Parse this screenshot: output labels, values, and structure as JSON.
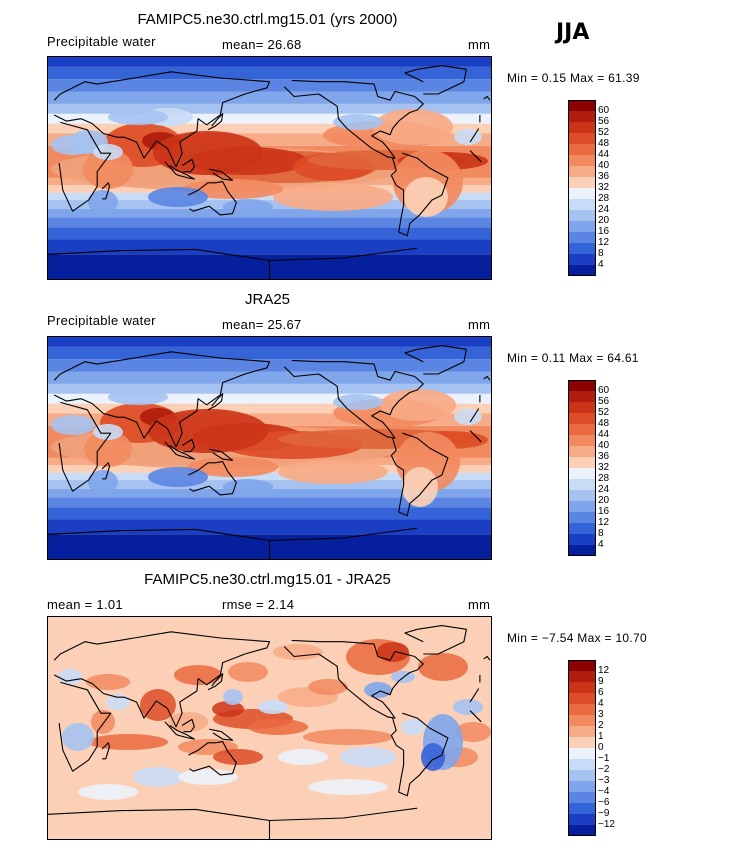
{
  "season_label": "JJA",
  "panels": [
    {
      "id": "model",
      "title": "FAMIPC5.ne30.ctrl.mg15.01 (yrs 2000)",
      "left_label": "Precipitable water",
      "center_label": "mean=  26.68",
      "units": "mm",
      "stats": "Min =   0.15 Max =  61.39",
      "colorbar": {
        "labels": [
          "60",
          "56",
          "52",
          "48",
          "44",
          "40",
          "36",
          "32",
          "28",
          "24",
          "20",
          "16",
          "12",
          "8",
          "4"
        ],
        "colors": [
          "#8b0000",
          "#b01c0e",
          "#cc3418",
          "#dd4d27",
          "#ea6a3f",
          "#f28a60",
          "#f7aa86",
          "#fbd0b6",
          "#ecf2fb",
          "#c9dcf6",
          "#a5c2f0",
          "#7fa5ea",
          "#5b85e2",
          "#3563d8",
          "#1a3fc4",
          "#061f9c"
        ],
        "pattern": "model"
      }
    },
    {
      "id": "obs",
      "title": "JRA25",
      "left_label": "Precipitable water",
      "center_label": "mean=  25.67",
      "units": "mm",
      "stats": "Min =   0.11 Max =  64.61",
      "colorbar": {
        "labels": [
          "60",
          "56",
          "52",
          "48",
          "44",
          "40",
          "36",
          "32",
          "28",
          "24",
          "20",
          "16",
          "12",
          "8",
          "4"
        ],
        "colors": [
          "#8b0000",
          "#b01c0e",
          "#cc3418",
          "#dd4d27",
          "#ea6a3f",
          "#f28a60",
          "#f7aa86",
          "#fbd0b6",
          "#ecf2fb",
          "#c9dcf6",
          "#a5c2f0",
          "#7fa5ea",
          "#5b85e2",
          "#3563d8",
          "#1a3fc4",
          "#061f9c"
        ],
        "pattern": "obs"
      }
    },
    {
      "id": "diff",
      "title": "FAMIPC5.ne30.ctrl.mg15.01 - JRA25",
      "left_label": "mean =    1.01",
      "center_label": "rmse =    2.14",
      "units": "mm",
      "stats": "Min =  −7.54 Max =  10.70",
      "colorbar": {
        "labels": [
          "12",
          "9",
          "6",
          "4",
          "3",
          "2",
          "1",
          "0",
          "−1",
          "−2",
          "−3",
          "−4",
          "−6",
          "−9",
          "−12"
        ],
        "colors": [
          "#8b0000",
          "#b01c0e",
          "#cc3418",
          "#dd4d27",
          "#ea6a3f",
          "#f28a60",
          "#f7aa86",
          "#fbd0b6",
          "#ecf2fb",
          "#c9dcf6",
          "#a5c2f0",
          "#7fa5ea",
          "#5b85e2",
          "#3563d8",
          "#1a3fc4",
          "#061f9c"
        ],
        "pattern": "diff"
      }
    }
  ]
}
